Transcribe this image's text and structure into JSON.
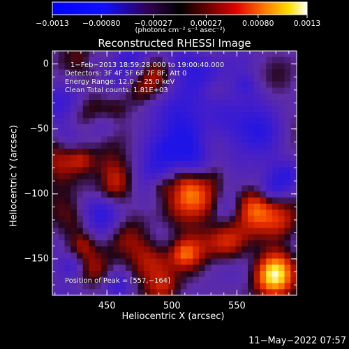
{
  "chart_data": {
    "type": "heatmap",
    "title": "Reconstructed RHESSI Image",
    "xlabel": "Heliocentric X (arcsec)",
    "ylabel": "Heliocentric Y (arcsec)",
    "xlim": [
      408,
      596
    ],
    "ylim": [
      -178,
      10
    ],
    "x_ticks": [
      {
        "value": 450,
        "label": "450"
      },
      {
        "value": 500,
        "label": "500"
      },
      {
        "value": 550,
        "label": "550"
      }
    ],
    "y_ticks": [
      {
        "value": 0,
        "label": "0"
      },
      {
        "value": -50,
        "label": "−50"
      },
      {
        "value": -100,
        "label": "−100"
      },
      {
        "value": -150,
        "label": "−150"
      }
    ],
    "colorbar": {
      "min": -0.0013,
      "max": 0.0013,
      "ticks": [
        {
          "value": -0.0013,
          "label": "−0.0013"
        },
        {
          "value": -0.0008,
          "label": "−0.00080"
        },
        {
          "value": -0.00027,
          "label": "−0.00027"
        },
        {
          "value": 0.00027,
          "label": "0.00027"
        },
        {
          "value": 0.0008,
          "label": "0.00080"
        },
        {
          "value": 0.0013,
          "label": "0.0013"
        }
      ],
      "unit": "(photons cm⁻² s⁻¹ asec⁻²)",
      "colors": [
        "#0000ff",
        "#000000",
        "#ff4000",
        "#ffff00",
        "#ffffff"
      ]
    },
    "annotations": [
      "1−Feb−2013 18:59:28.000 to 19:00:40.000",
      "Detectors: 3F 4F 5F 6F 7F 8F, Att 0",
      "Energy Range: 12.0 − 25.0 keV",
      "Clean     Total counts: 1.81E+03",
      "Position of Peak = [557,−164]"
    ],
    "peak": {
      "x": 557,
      "y": -164
    },
    "timestamp": "11−May−2022 07:57"
  }
}
